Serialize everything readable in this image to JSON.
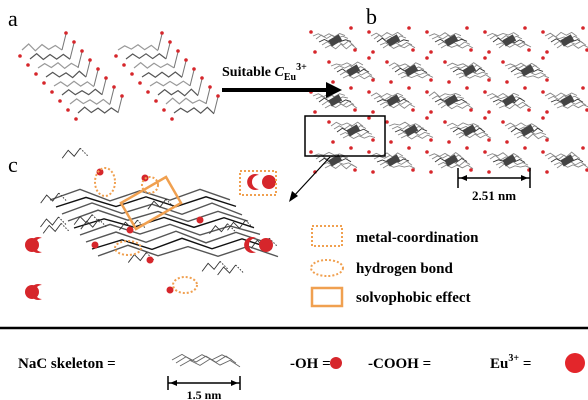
{
  "panels": {
    "a": "a",
    "b": "b",
    "c": "c"
  },
  "arrow_label": {
    "text": "Suitable ",
    "symbol": "C",
    "subscript": "Eu",
    "superscript": "3+"
  },
  "scale_b": "2.51 nm",
  "legend": {
    "metal": "metal-coordination",
    "hbond": "hydrogen bond",
    "solvo": "solvophobic effect"
  },
  "key": {
    "skeleton": "NaC skeleton =",
    "skeleton_scale": "1.5 nm",
    "oh": "-OH =",
    "cooh": "-COOH =",
    "eu": "Eu",
    "eu_sup": "3+",
    "eu_eq": " ="
  }
}
